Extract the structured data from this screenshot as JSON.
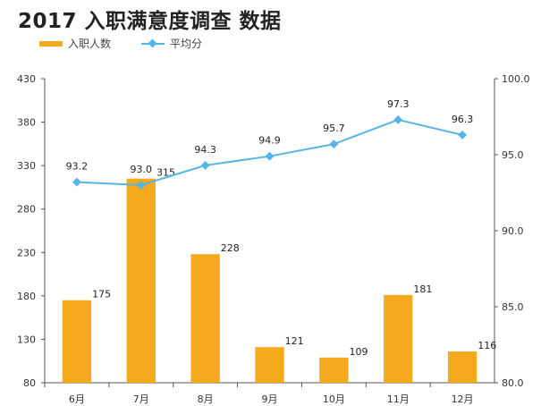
{
  "title": "2017 入职满意度调查 数据",
  "legend": {
    "bar_label": "入职人数",
    "line_label": "平均分"
  },
  "colors": {
    "bar": "#F5A91D",
    "line": "#55B6E6",
    "axis": "#555555"
  },
  "chart_data": {
    "type": "bar+line",
    "title": "2017 入职满意度调查 数据",
    "categories": [
      "6月",
      "7月",
      "8月",
      "9月",
      "10月",
      "11月",
      "12月"
    ],
    "series": [
      {
        "name": "入职人数",
        "type": "bar",
        "axis": "left",
        "values": [
          175,
          315,
          228,
          121,
          109,
          181,
          116
        ],
        "labels": [
          "175",
          "315",
          "228",
          "121",
          "109",
          "181",
          "116"
        ]
      },
      {
        "name": "平均分",
        "type": "line",
        "axis": "right",
        "values": [
          93.2,
          93.0,
          94.3,
          94.9,
          95.7,
          97.3,
          96.3
        ],
        "labels": [
          "93.2",
          "93.0",
          "94.3",
          "94.9",
          "95.7",
          "97.3",
          "96.3"
        ]
      }
    ],
    "y_left": {
      "min": 80,
      "max": 430,
      "ticks": [
        "80",
        "130",
        "180",
        "230",
        "280",
        "330",
        "380",
        "430"
      ]
    },
    "y_right": {
      "min": 80,
      "max": 100,
      "ticks": [
        "80.0",
        "85.0",
        "90.0",
        "95.0",
        "100.0"
      ]
    },
    "grid": false,
    "legend_position": "top-left"
  }
}
